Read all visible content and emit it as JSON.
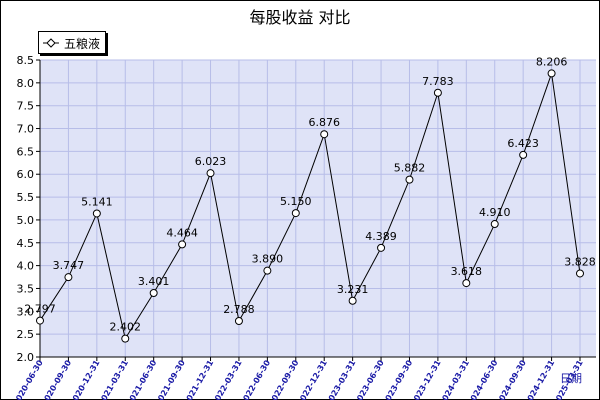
{
  "chart_data": {
    "type": "line",
    "title": "每股收益  对比",
    "xlabel": "日期",
    "ylabel": "",
    "ylim": [
      2.0,
      8.5
    ],
    "yticks": [
      "2.0",
      "2.5",
      "3.0",
      "3.5",
      "4.0",
      "4.5",
      "5.0",
      "5.5",
      "6.0",
      "6.5",
      "7.0",
      "7.5",
      "8.0",
      "8.5"
    ],
    "grid": true,
    "legend_position": "top-left",
    "colors": {
      "plot_bg": "#dfe3f7",
      "grid": "#b7bde8",
      "line": "#000000"
    },
    "categories": [
      "2020-06-30",
      "2020-09-30",
      "2020-12-31",
      "2021-03-31",
      "2021-06-30",
      "2021-09-30",
      "2021-12-31",
      "2022-03-31",
      "2022-06-30",
      "2022-09-30",
      "2022-12-31",
      "2023-03-31",
      "2023-06-30",
      "2023-09-30",
      "2023-12-31",
      "2024-03-31",
      "2024-06-30",
      "2024-09-30",
      "2024-12-31",
      "2025-03-31"
    ],
    "category_labels": [
      "2020-06-30",
      "2020-09-30",
      "2020-12-31",
      "2021-03-31",
      "2021-06-30",
      "2021-09-30",
      "2021-12-31",
      "2022-03-31",
      "2022-06-30",
      "2022-09-30",
      "2022-12-31",
      "2023-03-31",
      "2023-06-30",
      "2023-09-30",
      "2023-12-31",
      "2024-03-31",
      "2024-06-30",
      "2024-09-30",
      "2024-12-31",
      "2025-03-31"
    ],
    "series": [
      {
        "name": "五粮液",
        "values": [
          2.797,
          3.747,
          5.141,
          2.402,
          3.401,
          4.464,
          6.023,
          2.788,
          3.89,
          5.15,
          6.876,
          3.231,
          4.389,
          5.882,
          7.783,
          3.618,
          4.91,
          6.423,
          8.206,
          3.828
        ],
        "labels": [
          "2.797",
          "3.747",
          "5.141",
          "2.402",
          "3.401",
          "4.464",
          "6.023",
          "2.788",
          "3.890",
          "5.150",
          "6.876",
          "3.231",
          "4.389",
          "5.882",
          "7.783",
          "3.618",
          "4.910",
          "6.423",
          "8.206",
          "3.828"
        ]
      }
    ]
  }
}
